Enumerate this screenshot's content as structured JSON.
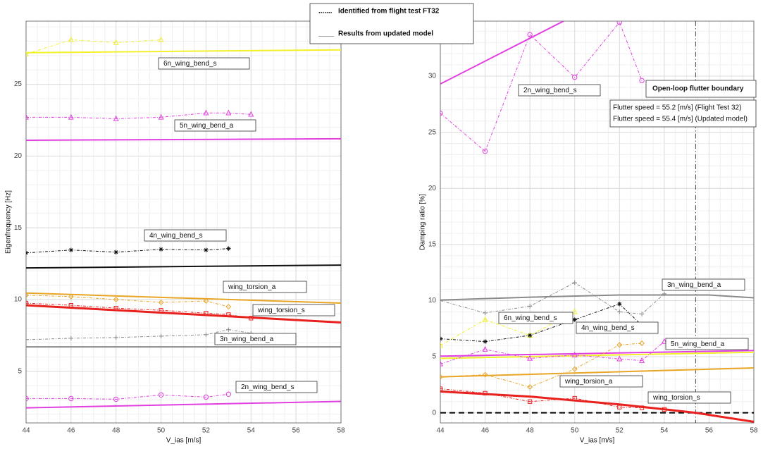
{
  "legend": {
    "entries": [
      {
        "symbol": ".......",
        "label": "Identified from flight test FT32"
      },
      {
        "symbol": "____",
        "label": "Results from updated model"
      }
    ]
  },
  "chart_data": [
    {
      "type": "line",
      "x_label": "V_ias  [m/s]",
      "y_label": "Eigenfrequency [Hz]",
      "xlim": [
        44,
        58
      ],
      "xticks": [
        44,
        46,
        48,
        50,
        52,
        54,
        56,
        58
      ],
      "ylim": [
        1.4,
        29.4
      ],
      "yticks": [
        5,
        10,
        15,
        20,
        25
      ],
      "grid": true,
      "minor_grid": true,
      "series": [
        {
          "name": "6n_wing_bend_s",
          "color": "#f2f02a",
          "marker": "triangle",
          "x": [
            44,
            46,
            48,
            50
          ],
          "values": [
            27.1,
            28.1,
            27.9,
            28.1
          ],
          "model_x": [
            44,
            58
          ],
          "model_values": [
            27.2,
            27.4
          ]
        },
        {
          "name": "5n_wing_bend_a",
          "color": "#e23fe0",
          "marker": "triangle",
          "x": [
            44,
            46,
            48,
            50,
            52,
            53,
            54
          ],
          "values": [
            22.7,
            22.7,
            22.6,
            22.7,
            23.0,
            23.0,
            22.9
          ],
          "model_x": [
            44,
            58
          ],
          "model_values": [
            21.1,
            21.2
          ]
        },
        {
          "name": "4n_wing_bend_s",
          "color": "#111111",
          "marker": "star",
          "x": [
            44,
            46,
            48,
            50,
            52,
            53
          ],
          "values": [
            13.25,
            13.45,
            13.3,
            13.5,
            13.45,
            13.55
          ],
          "model_x": [
            44,
            58
          ],
          "model_values": [
            12.2,
            12.4
          ]
        },
        {
          "name": "wing_torsion_a",
          "color": "#e8a526",
          "marker": "diamond",
          "x": [
            44,
            46,
            48,
            50,
            52,
            53
          ],
          "values": [
            10.3,
            10.2,
            10.0,
            9.8,
            9.9,
            9.5
          ],
          "model_x": [
            44,
            58
          ],
          "model_values": [
            10.45,
            9.75
          ]
        },
        {
          "name": "wing_torsion_s",
          "color": "#e8201e",
          "marker": "square",
          "x": [
            44,
            46,
            48,
            50,
            52,
            53,
            54
          ],
          "values": [
            9.75,
            9.6,
            9.4,
            9.25,
            9.05,
            8.95,
            8.7
          ],
          "model_x": [
            44,
            58
          ],
          "model_values": [
            9.6,
            8.4
          ]
        },
        {
          "name": "3n_wing_bend_a",
          "color": "#8a8a8a",
          "marker": "plus",
          "x": [
            44,
            46,
            48,
            50,
            52,
            53,
            54
          ],
          "values": [
            7.2,
            7.3,
            7.35,
            7.45,
            7.55,
            7.9,
            7.65
          ],
          "model_x": [
            44,
            58
          ],
          "model_values": [
            6.7,
            6.7
          ]
        },
        {
          "name": "2n_wing_bend_s",
          "color": "#e23fe0",
          "marker": "circle",
          "x": [
            44,
            46,
            48,
            50,
            52,
            53
          ],
          "values": [
            3.1,
            3.1,
            3.05,
            3.35,
            3.2,
            3.4
          ],
          "model_x": [
            44,
            58
          ],
          "model_values": [
            2.45,
            2.9
          ]
        }
      ]
    },
    {
      "type": "line",
      "x_label": "V_ias  [m/s]",
      "y_label": "Damping ratio [%]",
      "xlim": [
        44,
        58
      ],
      "xticks": [
        44,
        46,
        48,
        50,
        52,
        54,
        56,
        58
      ],
      "ylim": [
        -0.9,
        34.9
      ],
      "yticks": [
        0,
        5,
        10,
        15,
        20,
        25,
        30
      ],
      "grid": true,
      "minor_grid": true,
      "zero_line_y": 0,
      "flutter_line_x": 55.4,
      "annotation": {
        "title": "Open-loop flutter boundary",
        "lines": [
          "Flutter speed = 55.2 [m/s] (Flight Test 32)",
          "Flutter speed = 55.4 [m/s] (Updated model)"
        ]
      },
      "series": [
        {
          "name": "6n_wing_bend_s",
          "color": "#f2f02a",
          "marker": "triangle",
          "x": [
            44,
            46,
            48,
            50
          ],
          "values": [
            6.0,
            8.3,
            6.9,
            9.0
          ],
          "model_x": [
            44,
            58
          ],
          "model_values": [
            4.85,
            5.4
          ]
        },
        {
          "name": "5n_wing_bend_a",
          "color": "#e23fe0",
          "marker": "triangle",
          "x": [
            44,
            46,
            48,
            50,
            52,
            53,
            54
          ],
          "values": [
            4.35,
            5.65,
            4.85,
            5.15,
            4.8,
            4.65,
            6.35
          ],
          "model_x": [
            44,
            58
          ],
          "model_values": [
            5.05,
            5.55
          ]
        },
        {
          "name": "4n_wing_bend_s",
          "color": "#111111",
          "marker": "star",
          "x": [
            44,
            46,
            48,
            50,
            52,
            53
          ],
          "values": [
            6.6,
            6.35,
            6.9,
            8.3,
            9.7,
            7.8
          ]
        },
        {
          "name": "wing_torsion_a",
          "color": "#e8a526",
          "marker": "diamond",
          "x": [
            44,
            46,
            48,
            50,
            52,
            53
          ],
          "values": [
            3.2,
            3.4,
            2.3,
            3.9,
            6.05,
            6.2
          ],
          "model_x": [
            44,
            58
          ],
          "model_values": [
            3.2,
            4.0
          ]
        },
        {
          "name": "wing_torsion_s",
          "color": "#e8201e",
          "marker": "square",
          "x": [
            44,
            46,
            48,
            50,
            52,
            53,
            54
          ],
          "values": [
            2.15,
            1.75,
            1.0,
            1.3,
            0.5,
            0.45,
            0.3
          ],
          "model_x": [
            44,
            48,
            52,
            55.4,
            58
          ],
          "model_values": [
            1.9,
            1.45,
            0.75,
            0,
            -0.8
          ]
        },
        {
          "name": "3n_wing_bend_a",
          "color": "#8a8a8a",
          "marker": "plus",
          "x": [
            44,
            46,
            48,
            50,
            52,
            53,
            54
          ],
          "values": [
            10.0,
            8.9,
            9.5,
            11.6,
            9.0,
            8.8,
            10.6
          ],
          "model_x": [
            44,
            48,
            52,
            56,
            58
          ],
          "model_values": [
            10.05,
            10.3,
            10.5,
            10.5,
            10.25
          ]
        },
        {
          "name": "2n_wing_bend_s",
          "color": "#e23fe0",
          "marker": "circle",
          "x": [
            44,
            46,
            48,
            50,
            52,
            53
          ],
          "values": [
            26.7,
            23.3,
            33.7,
            29.9,
            34.8,
            29.6
          ],
          "model_x": [
            44,
            49.5
          ],
          "model_values": [
            29.3,
            34.9
          ]
        }
      ]
    }
  ]
}
